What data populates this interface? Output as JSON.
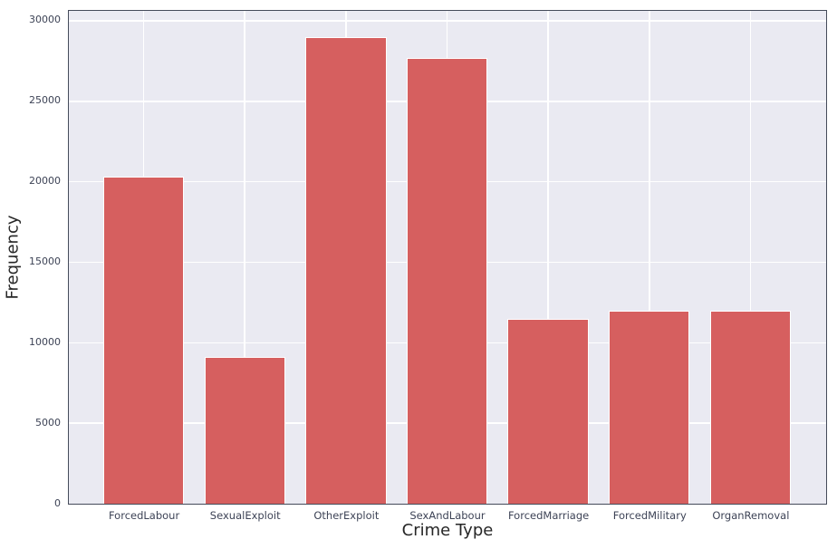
{
  "figure": {
    "background": "#ffffff"
  },
  "chart_data": {
    "type": "bar",
    "title": "",
    "xlabel": "Crime Type",
    "ylabel": "Frequency",
    "categories": [
      "ForcedLabour",
      "SexualExploit",
      "OtherExploit",
      "SexAndLabour",
      "ForcedMarriage",
      "ForcedMilitary",
      "OrganRemoval"
    ],
    "values": [
      20300,
      9100,
      29000,
      27700,
      11500,
      12000,
      12000
    ],
    "yticks": [
      0,
      5000,
      10000,
      15000,
      20000,
      25000,
      30000
    ],
    "ylim": [
      0,
      30560
    ],
    "grid": true,
    "legend": "none",
    "colors": {
      "bar_fill": "#d65f5f",
      "bar_edge": "#ffffff",
      "plot_background": "#eaeaf2",
      "grid_line": "#ffffff",
      "axis_border": "#454b5a",
      "tick_label": "#3d4356",
      "axis_label": "#262626"
    }
  }
}
